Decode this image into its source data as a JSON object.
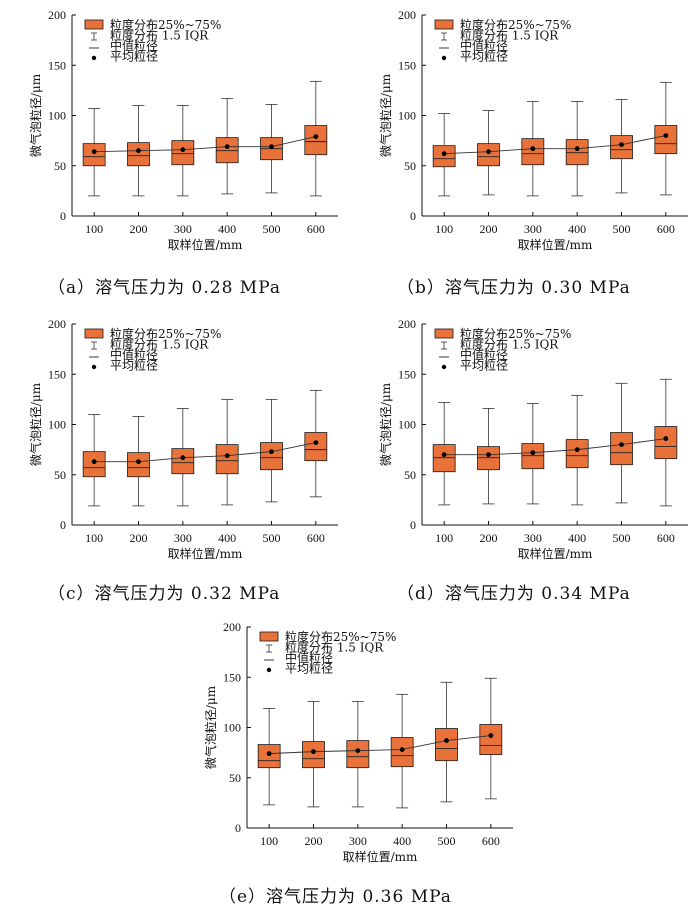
{
  "chart_data": [
    {
      "type": "box",
      "caption": "（a）溶气压力为 0.28 MPa",
      "xlabel": "取样位置/mm",
      "ylabel": "微气泡粒径/μm",
      "ylim": [
        0,
        200
      ],
      "yticks": [
        "0",
        "50",
        "100",
        "150",
        "200"
      ],
      "categories": [
        "100",
        "200",
        "300",
        "400",
        "500",
        "600"
      ],
      "legend": [
        "粒度分布25%~75%",
        "粒度分布 1.5 IQR",
        "中值粒径",
        "平均粒径"
      ],
      "whisker_low": [
        20,
        20,
        20,
        22,
        23,
        20
      ],
      "q1": [
        50,
        50,
        51,
        53,
        56,
        61
      ],
      "median": [
        59,
        60,
        62,
        65,
        67,
        74
      ],
      "q3": [
        72,
        73,
        75,
        78,
        78,
        90
      ],
      "whisker_high": [
        107,
        110,
        110,
        117,
        111,
        134
      ],
      "mean": [
        64,
        65,
        66,
        69,
        69,
        79
      ]
    },
    {
      "type": "box",
      "caption": "（b）溶气压力为 0.30 MPa",
      "xlabel": "取样位置/mm",
      "ylabel": "微气泡粒径/μm",
      "ylim": [
        0,
        200
      ],
      "yticks": [
        "0",
        "50",
        "100",
        "150",
        "200"
      ],
      "categories": [
        "100",
        "200",
        "300",
        "400",
        "500",
        "600"
      ],
      "legend": [
        "粒度分布25%~75%",
        "粒度分布 1.5 IQR",
        "中值粒径",
        "平均粒径"
      ],
      "whisker_low": [
        20,
        21,
        20,
        20,
        23,
        21
      ],
      "q1": [
        49,
        50,
        51,
        51,
        57,
        62
      ],
      "median": [
        57,
        59,
        62,
        63,
        66,
        72
      ],
      "q3": [
        70,
        72,
        77,
        76,
        80,
        90
      ],
      "whisker_high": [
        102,
        105,
        114,
        114,
        116,
        133
      ],
      "mean": [
        62,
        64,
        67,
        67,
        71,
        80
      ]
    },
    {
      "type": "box",
      "caption": "（c）溶气压力为 0.32 MPa",
      "xlabel": "取样位置/mm",
      "ylabel": "微气泡粒径/μm",
      "ylim": [
        0,
        200
      ],
      "yticks": [
        "0",
        "50",
        "100",
        "150",
        "200"
      ],
      "categories": [
        "100",
        "200",
        "300",
        "400",
        "500",
        "600"
      ],
      "legend": [
        "粒度分布25%~75%",
        "粒度分布 1.5 IQR",
        "中值粒径",
        "平均粒径"
      ],
      "whisker_low": [
        19,
        19,
        19,
        20,
        23,
        28
      ],
      "q1": [
        48,
        48,
        51,
        51,
        55,
        64
      ],
      "median": [
        57,
        57,
        62,
        64,
        67,
        75
      ],
      "q3": [
        73,
        72,
        76,
        80,
        82,
        92
      ],
      "whisker_high": [
        110,
        108,
        116,
        125,
        125,
        134
      ],
      "mean": [
        63,
        63,
        67,
        69,
        73,
        82
      ]
    },
    {
      "type": "box",
      "caption": "（d）溶气压力为 0.34 MPa",
      "xlabel": "取样位置/mm",
      "ylabel": "微气泡粒径/μm",
      "ylim": [
        0,
        200
      ],
      "yticks": [
        "0",
        "50",
        "100",
        "150",
        "200"
      ],
      "categories": [
        "100",
        "200",
        "300",
        "400",
        "500",
        "600"
      ],
      "legend": [
        "粒度分布25%~75%",
        "粒度分布 1.5 IQR",
        "中值粒径",
        "平均粒径"
      ],
      "whisker_low": [
        20,
        21,
        21,
        20,
        22,
        19
      ],
      "q1": [
        53,
        55,
        56,
        57,
        60,
        66
      ],
      "median": [
        67,
        67,
        69,
        69,
        72,
        78
      ],
      "q3": [
        80,
        78,
        81,
        85,
        92,
        98
      ],
      "whisker_high": [
        122,
        116,
        121,
        129,
        141,
        145
      ],
      "mean": [
        70,
        70,
        72,
        75,
        80,
        86
      ]
    },
    {
      "type": "box",
      "caption": "（e）溶气压力为 0.36 MPa",
      "xlabel": "取样位置/mm",
      "ylabel": "微气泡粒径/μm",
      "ylim": [
        0,
        200
      ],
      "yticks": [
        "0",
        "50",
        "100",
        "150",
        "200"
      ],
      "categories": [
        "100",
        "200",
        "300",
        "400",
        "500",
        "600"
      ],
      "legend": [
        "粒度分布25%~75%",
        "粒度分布 1.5 IQR",
        "中值粒径",
        "平均粒径"
      ],
      "whisker_low": [
        23,
        21,
        21,
        20,
        26,
        29
      ],
      "q1": [
        60,
        60,
        60,
        61,
        67,
        73
      ],
      "median": [
        67,
        69,
        71,
        72,
        79,
        82
      ],
      "q3": [
        83,
        86,
        87,
        90,
        99,
        103
      ],
      "whisker_high": [
        119,
        126,
        126,
        133,
        145,
        149
      ],
      "mean": [
        74,
        76,
        77,
        78,
        87,
        92
      ]
    }
  ],
  "colors": {
    "box_fill": "#e8723a",
    "box_stroke": "#1a1a1a",
    "line": "#333333"
  }
}
